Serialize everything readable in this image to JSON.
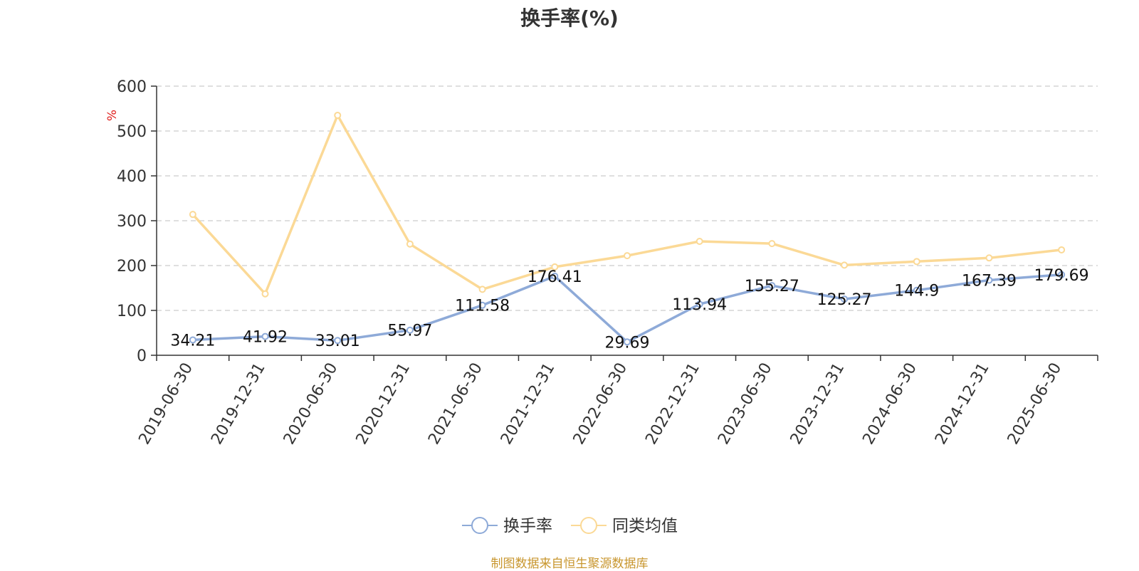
{
  "source_note": "制图数据来自恒生聚源数据库",
  "colors": {
    "series1": "#8eaad8",
    "series2": "#fbd996",
    "unit": "#e0201e",
    "axis": "#333333",
    "grid": "#cccccc"
  },
  "chart_data": {
    "type": "line",
    "title": "换手率(%)",
    "ylabel": "%",
    "ylim": [
      0,
      600
    ],
    "yticks": [
      0,
      100,
      200,
      300,
      400,
      500,
      600
    ],
    "grid": true,
    "legend_position": "bottom-center",
    "categories": [
      "2019-06-30",
      "2019-12-31",
      "2020-06-30",
      "2020-12-31",
      "2021-06-30",
      "2021-12-31",
      "2022-06-30",
      "2022-12-31",
      "2023-06-30",
      "2023-12-31",
      "2024-06-30",
      "2024-12-31",
      "2025-06-30"
    ],
    "series": [
      {
        "name": "换手率",
        "values": [
          34.21,
          41.92,
          33.01,
          55.97,
          111.58,
          176.41,
          29.69,
          113.94,
          155.27,
          125.27,
          144.9,
          167.39,
          179.69
        ],
        "labels": [
          "34.21",
          "41.92",
          "33.01",
          "55.97",
          "111.58",
          "176.41",
          "29.69",
          "113.94",
          "155.27",
          "125.27",
          "144.9",
          "167.39",
          "179.69"
        ],
        "show_labels": true
      },
      {
        "name": "同类均值",
        "values": [
          314,
          137,
          535,
          248,
          147,
          197,
          222,
          254,
          249,
          201,
          209,
          217,
          235
        ],
        "show_labels": false
      }
    ]
  }
}
